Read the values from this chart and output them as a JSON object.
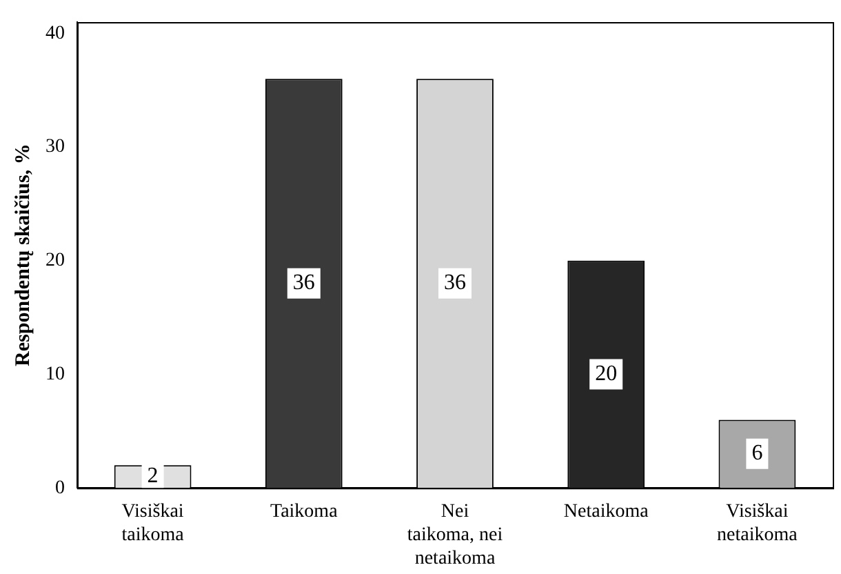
{
  "chart_data": {
    "type": "bar",
    "ylabel": "Respondentų skaičius, %",
    "categories": [
      "Visiškai\ntaikoma",
      "Taikoma",
      "Nei\ntaikoma, nei\nnetaikoma",
      "Netaikoma",
      "Visiškai\nnetaikoma"
    ],
    "values": [
      2,
      36,
      36,
      20,
      6
    ],
    "colors": [
      "#e0e0e0",
      "#3a3a3a",
      "#d4d4d4",
      "#262626",
      "#a8a8a8"
    ],
    "ylim": [
      0,
      41
    ],
    "yticks": [
      0,
      10,
      20,
      30,
      40
    ],
    "grid": false,
    "legend": false,
    "data_labels": true
  }
}
